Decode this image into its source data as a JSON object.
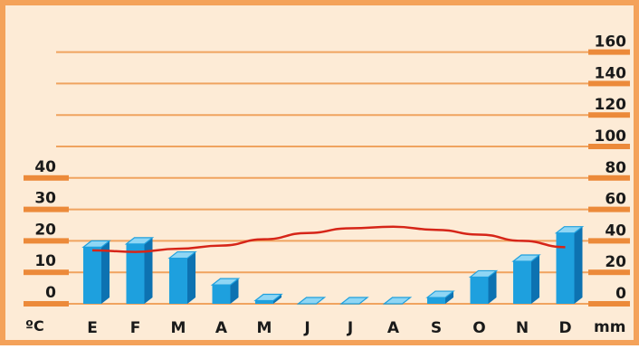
{
  "chart_data": {
    "type": "bar",
    "categories": [
      "E",
      "F",
      "M",
      "A",
      "M",
      "J",
      "J",
      "A",
      "S",
      "O",
      "N",
      "D"
    ],
    "series": [
      {
        "type": "bar",
        "axis": "right",
        "values": [
          36,
          38,
          29,
          12,
          2,
          0,
          0,
          0,
          4,
          17,
          27,
          45
        ]
      },
      {
        "type": "line",
        "axis": "left",
        "values": [
          17,
          16.5,
          17.5,
          18.5,
          20.5,
          22.5,
          24,
          24.5,
          23.5,
          22,
          20,
          18
        ]
      }
    ],
    "left_axis": {
      "unit": "ºC",
      "ticks": [
        "0",
        "10",
        "20",
        "30",
        "40"
      ],
      "range": [
        0,
        40
      ]
    },
    "right_axis": {
      "unit": "mm",
      "ticks": [
        "0",
        "20",
        "40",
        "60",
        "80",
        "100",
        "120",
        "140",
        "160"
      ],
      "range": [
        0,
        160
      ]
    },
    "grid": true
  },
  "colors": {
    "background": "#fdebd6",
    "border": "#f4a25a",
    "gridline": "#f0a35f",
    "tick_bar": "#ec8a3a",
    "bar_front": "#1ea0de",
    "bar_top": "#8fd6f4",
    "bar_side": "#0d72b1",
    "line": "#d62518"
  }
}
